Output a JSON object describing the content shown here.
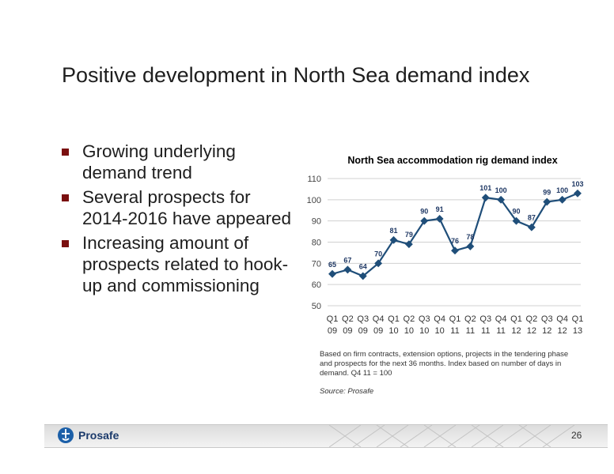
{
  "slide": {
    "title": "Positive development in North Sea demand index",
    "bullets": [
      "Growing underlying demand trend",
      "Several prospects for 2014-2016 have appeared",
      "Increasing amount of prospects related to hook-up and commissioning"
    ],
    "note": "Based on firm contracts, extension options, projects in the tendering phase and prospects for the next 36 months. Index based on number of days in demand. Q4 11 = 100",
    "source": "Source: Prosafe",
    "page_number": "26",
    "logo_text": "Prosafe"
  },
  "chart_data": {
    "type": "line",
    "title": "North Sea accommodation rig demand index",
    "categories": [
      [
        "Q1",
        "09"
      ],
      [
        "Q2",
        "09"
      ],
      [
        "Q3",
        "09"
      ],
      [
        "Q4",
        "09"
      ],
      [
        "Q1",
        "10"
      ],
      [
        "Q2",
        "10"
      ],
      [
        "Q3",
        "10"
      ],
      [
        "Q4",
        "10"
      ],
      [
        "Q1",
        "11"
      ],
      [
        "Q2",
        "11"
      ],
      [
        "Q3",
        "11"
      ],
      [
        "Q4",
        "11"
      ],
      [
        "Q1",
        "12"
      ],
      [
        "Q2",
        "12"
      ],
      [
        "Q3",
        "12"
      ],
      [
        "Q4",
        "12"
      ],
      [
        "Q1",
        "13"
      ]
    ],
    "values": [
      65,
      67,
      64,
      70,
      81,
      79,
      90,
      91,
      76,
      78,
      101,
      100,
      90,
      87,
      99,
      100,
      103
    ],
    "ylim": [
      50,
      110
    ],
    "yticks": [
      50,
      60,
      70,
      80,
      90,
      100,
      110
    ],
    "grid": true,
    "line_color": "#1f4e79",
    "label_color": "#1f3864"
  }
}
